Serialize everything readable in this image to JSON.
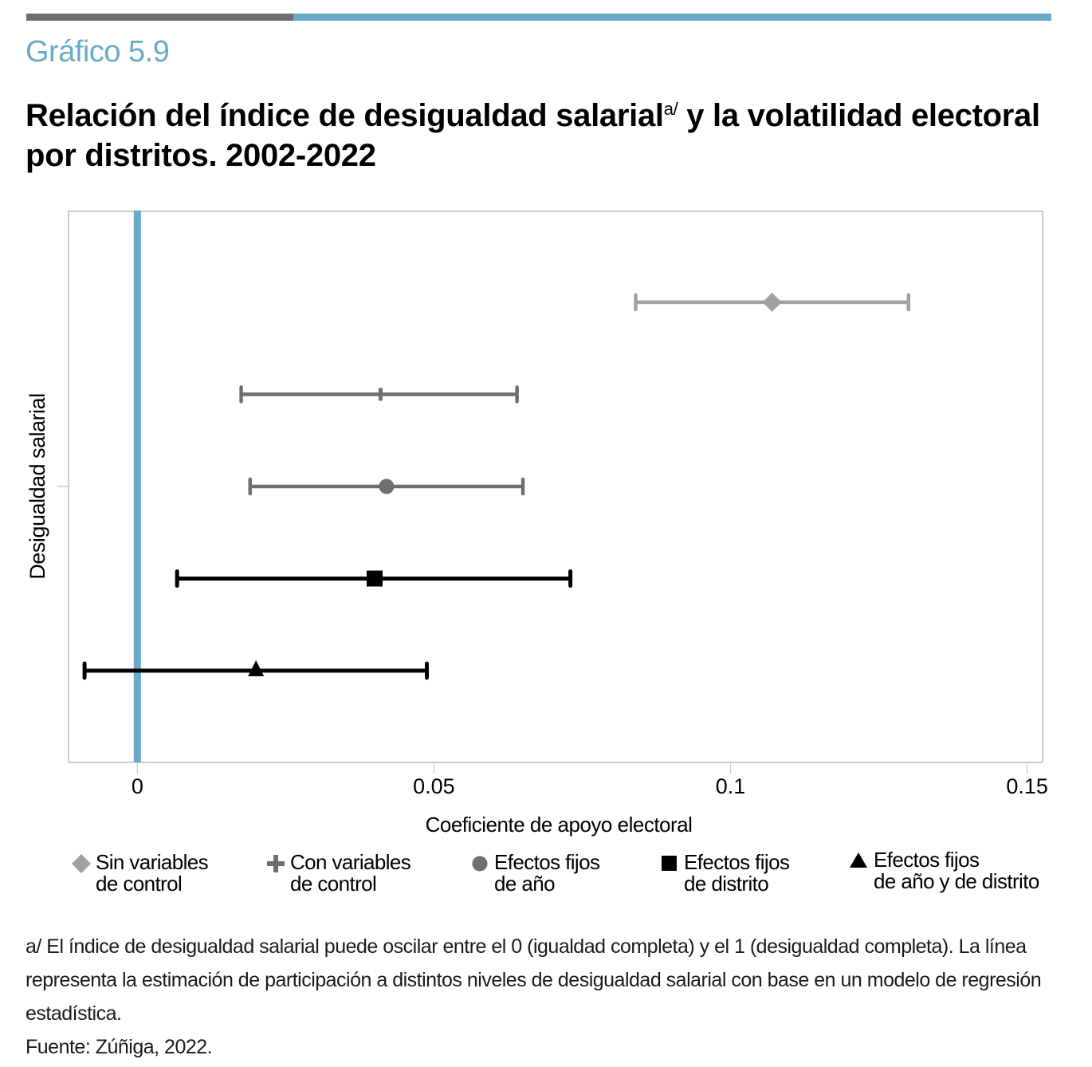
{
  "header": {
    "kicker": "Gráfico 5.9",
    "title_part1": "Relación del índice de desigualdad salarial",
    "title_sup": "a/",
    "title_part2": " y la volatilidad electoral por distritos. 2002-2022",
    "bar_colors": {
      "dark": "#6d6e70",
      "accent": "#6aaac9"
    }
  },
  "chart_data": {
    "type": "scatter",
    "subtype": "coefficient-plot-with-confidence-intervals",
    "title": "Relación del índice de desigualdad salarial y la volatilidad electoral por distritos. 2002-2022",
    "xlabel": "Coeficiente de apoyo electoral",
    "ylabel": "Desigualdad salarial",
    "xlim": [
      -0.0116,
      0.1526
    ],
    "xticks": [
      0,
      0.05,
      0.1,
      0.15
    ],
    "xtick_labels": [
      "0",
      "0.05",
      "0.1",
      "0.15"
    ],
    "reference_line": {
      "x": 0,
      "color": "#6aaac9"
    },
    "grid": false,
    "legend_position": "bottom",
    "series": [
      {
        "name": "Sin variables de control",
        "marker": "diamond",
        "color": "#a0a0a0",
        "estimate": 0.107,
        "ci_low": 0.084,
        "ci_high": 0.13
      },
      {
        "name": "Con variables de control",
        "marker": "plus",
        "color": "#6f6f6f",
        "estimate": 0.041,
        "ci_low": 0.0175,
        "ci_high": 0.064
      },
      {
        "name": "Efectos fijos de año",
        "marker": "circle",
        "color": "#6f6f6f",
        "estimate": 0.042,
        "ci_low": 0.019,
        "ci_high": 0.065
      },
      {
        "name": "Efectos fijos de distrito",
        "marker": "square",
        "color": "#000000",
        "estimate": 0.04,
        "ci_low": 0.0067,
        "ci_high": 0.073
      },
      {
        "name": "Efectos fijos de año y de distrito",
        "marker": "triangle",
        "color": "#000000",
        "estimate": 0.02,
        "ci_low": -0.0089,
        "ci_high": 0.0488
      }
    ]
  },
  "legend": [
    {
      "label": "Sin variables\nde control",
      "marker": "diamond",
      "color": "#a0a0a0"
    },
    {
      "label": "Con variables\nde control",
      "marker": "plus",
      "color": "#6f6f6f"
    },
    {
      "label": "Efectos fijos\nde año",
      "marker": "circle",
      "color": "#6f6f6f"
    },
    {
      "label": "Efectos fijos\nde distrito",
      "marker": "square",
      "color": "#000000"
    },
    {
      "label": "Efectos fijos\nde año y de distrito",
      "marker": "triangle",
      "color": "#000000"
    }
  ],
  "notes": {
    "footnote": "a/ El índice de desigualdad salarial puede oscilar entre el 0 (igualdad completa) y el 1 (desigualdad completa). La línea representa la estimación de participación a distintos niveles de desigualdad salarial con base en un modelo de regresión estadística.",
    "source": "Fuente: Zúñiga, 2022."
  }
}
